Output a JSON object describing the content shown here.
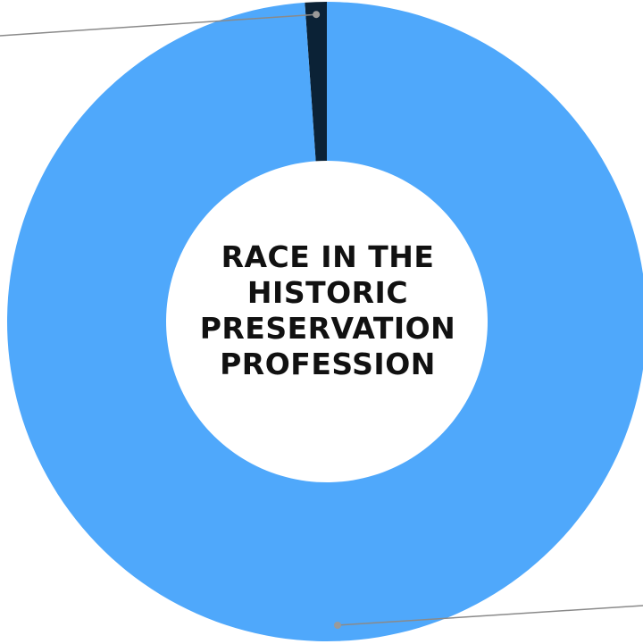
{
  "chart_data": {
    "type": "pie",
    "style": "donut",
    "title_lines": [
      "RACE IN THE",
      "HISTORIC",
      "PRESERVATION",
      "PROFESSION"
    ],
    "slices": [
      {
        "value": 1.1,
        "color": "#0b2236"
      },
      {
        "value": 98.9,
        "color": "#4fa8fb"
      }
    ],
    "legend": "none"
  }
}
